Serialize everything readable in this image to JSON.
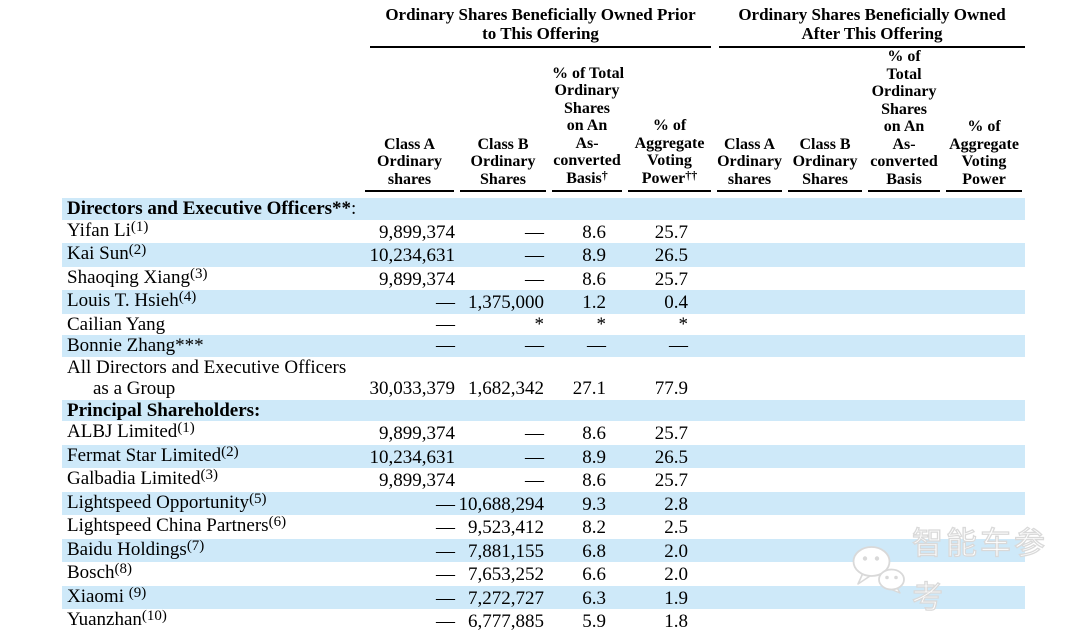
{
  "page": {
    "background": "#ffffff",
    "stripe_color": "#cee9f9",
    "rule_color": "#000000"
  },
  "table": {
    "group_headers": [
      {
        "line1": "Ordinary Shares Beneficially Owned Prior",
        "line2": "to This Offering"
      },
      {
        "line1": "Ordinary Shares Beneficially Owned",
        "line2": "After This Offering"
      }
    ],
    "columns": [
      {
        "id": "prior-class-a",
        "lines": [
          "Class A",
          "Ordinary",
          "shares"
        ],
        "sup": ""
      },
      {
        "id": "prior-class-b",
        "lines": [
          "Class B",
          "Ordinary",
          "Shares"
        ],
        "sup": ""
      },
      {
        "id": "prior-pct-total",
        "lines": [
          "% of Total",
          "Ordinary",
          "Shares",
          "on An",
          "As-",
          "converted",
          "Basis"
        ],
        "sup": "†"
      },
      {
        "id": "prior-voting-power",
        "lines": [
          "% of",
          "Aggregate",
          "Voting",
          "Power"
        ],
        "sup": "††"
      },
      {
        "id": "after-class-a",
        "lines": [
          "Class A",
          "Ordinary",
          "shares"
        ],
        "sup": ""
      },
      {
        "id": "after-class-b",
        "lines": [
          "Class B",
          "Ordinary",
          "Shares"
        ],
        "sup": ""
      },
      {
        "id": "after-pct-total",
        "lines": [
          "% of",
          "Total",
          "Ordinary",
          "Shares",
          "on An",
          "As-",
          "converted",
          "Basis"
        ],
        "sup": ""
      },
      {
        "id": "after-voting-power",
        "lines": [
          "% of",
          "Aggregate",
          "Voting",
          "Power"
        ],
        "sup": ""
      }
    ],
    "rows": [
      {
        "kind": "section",
        "label": "Directors and Executive Officers**",
        "suffix": ":",
        "stripe": true
      },
      {
        "kind": "data",
        "name": "Yifan Li",
        "sup": "(1)",
        "cells": [
          "9,899,374",
          "—",
          "8.6",
          "25.7",
          "",
          "",
          "",
          ""
        ],
        "stripe": false
      },
      {
        "kind": "data",
        "name": "Kai Sun",
        "sup": "(2)",
        "cells": [
          "10,234,631",
          "—",
          "8.9",
          "26.5",
          "",
          "",
          "",
          ""
        ],
        "stripe": true
      },
      {
        "kind": "data",
        "name": "Shaoqing Xiang",
        "sup": "(3)",
        "cells": [
          "9,899,374",
          "—",
          "8.6",
          "25.7",
          "",
          "",
          "",
          ""
        ],
        "stripe": false
      },
      {
        "kind": "data",
        "name": "Louis T. Hsieh",
        "sup": "(4)",
        "cells": [
          "—",
          "1,375,000",
          "1.2",
          "0.4",
          "",
          "",
          "",
          ""
        ],
        "stripe": true
      },
      {
        "kind": "data",
        "name": "Cailian Yang",
        "sup": "",
        "cells": [
          "—",
          "*",
          "*",
          "*",
          "",
          "",
          "",
          ""
        ],
        "stripe": false
      },
      {
        "kind": "data",
        "name": "Bonnie Zhang***",
        "sup": "",
        "cells": [
          "—",
          "—",
          "—",
          "—",
          "",
          "",
          "",
          ""
        ],
        "stripe": true
      },
      {
        "kind": "group",
        "line1": "All Directors and Executive Officers",
        "line2": "as a Group",
        "cells": [
          "30,033,379",
          "1,682,342",
          "27.1",
          "77.9",
          "",
          "",
          "",
          ""
        ],
        "stripe": false
      },
      {
        "kind": "section",
        "label": "Principal Shareholders:",
        "suffix": "",
        "stripe": true
      },
      {
        "kind": "data",
        "name": "ALBJ Limited",
        "sup": "(1)",
        "cells": [
          "9,899,374",
          "—",
          "8.6",
          "25.7",
          "",
          "",
          "",
          ""
        ],
        "stripe": false
      },
      {
        "kind": "data",
        "name": "Fermat Star Limited",
        "sup": "(2)",
        "cells": [
          "10,234,631",
          "—",
          "8.9",
          "26.5",
          "",
          "",
          "",
          ""
        ],
        "stripe": true
      },
      {
        "kind": "data",
        "name": "Galbadia Limited",
        "sup": "(3)",
        "cells": [
          "9,899,374",
          "—",
          "8.6",
          "25.7",
          "",
          "",
          "",
          ""
        ],
        "stripe": false
      },
      {
        "kind": "data",
        "name": "Lightspeed Opportunity",
        "sup": "(5)",
        "cells": [
          "—",
          "10,688,294",
          "9.3",
          "2.8",
          "",
          "",
          "",
          ""
        ],
        "stripe": true
      },
      {
        "kind": "data",
        "name": "Lightspeed China Partners",
        "sup": "(6)",
        "cells": [
          "—",
          "9,523,412",
          "8.2",
          "2.5",
          "",
          "",
          "",
          ""
        ],
        "stripe": false
      },
      {
        "kind": "data",
        "name": "Baidu Holdings",
        "sup": "(7)",
        "cells": [
          "—",
          "7,881,155",
          "6.8",
          "2.0",
          "",
          "",
          "",
          ""
        ],
        "stripe": true
      },
      {
        "kind": "data",
        "name": "Bosch",
        "sup": "(8)",
        "cells": [
          "—",
          "7,653,252",
          "6.6",
          "2.0",
          "",
          "",
          "",
          ""
        ],
        "stripe": false
      },
      {
        "kind": "data",
        "name": "Xiaomi ",
        "sup": "(9)",
        "cells": [
          "—",
          "7,272,727",
          "6.3",
          "1.9",
          "",
          "",
          "",
          ""
        ],
        "stripe": true
      },
      {
        "kind": "data",
        "name": "Yuanzhan",
        "sup": "(10)",
        "cells": [
          "—",
          "6,777,885",
          "5.9",
          "1.8",
          "",
          "",
          "",
          ""
        ],
        "stripe": false
      }
    ]
  },
  "watermark": {
    "icon": "wechat-icon",
    "text": "智能车参考"
  }
}
